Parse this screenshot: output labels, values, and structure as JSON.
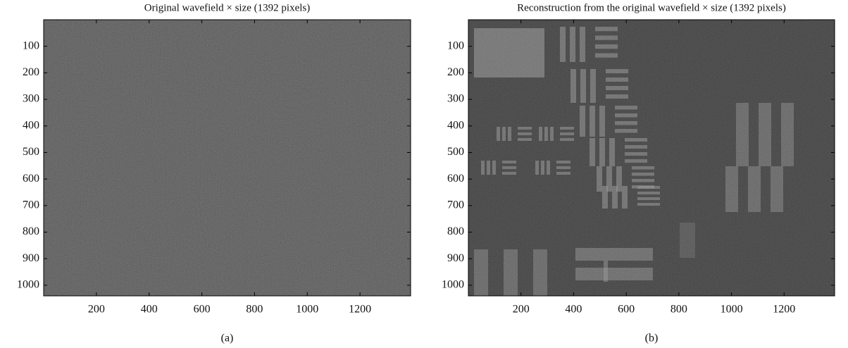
{
  "chart_data": [
    {
      "type": "image",
      "title": "Original wavefield × size (1392 pixels)",
      "caption": "(a)",
      "xlim": [
        0,
        1392
      ],
      "ylim": [
        1040,
        0
      ],
      "xticks": [
        200,
        400,
        600,
        800,
        1000,
        1200
      ],
      "yticks": [
        100,
        200,
        300,
        400,
        500,
        600,
        700,
        800,
        900,
        1000
      ]
    },
    {
      "type": "image",
      "title": "Reconstruction from the original wavefield × size (1392 pixels)",
      "caption": "(b)",
      "xlim": [
        0,
        1392
      ],
      "ylim": [
        1040,
        0
      ],
      "xticks": [
        200,
        400,
        600,
        800,
        1000,
        1200
      ],
      "yticks": [
        100,
        200,
        300,
        400,
        500,
        600,
        700,
        800,
        900,
        1000
      ]
    }
  ]
}
